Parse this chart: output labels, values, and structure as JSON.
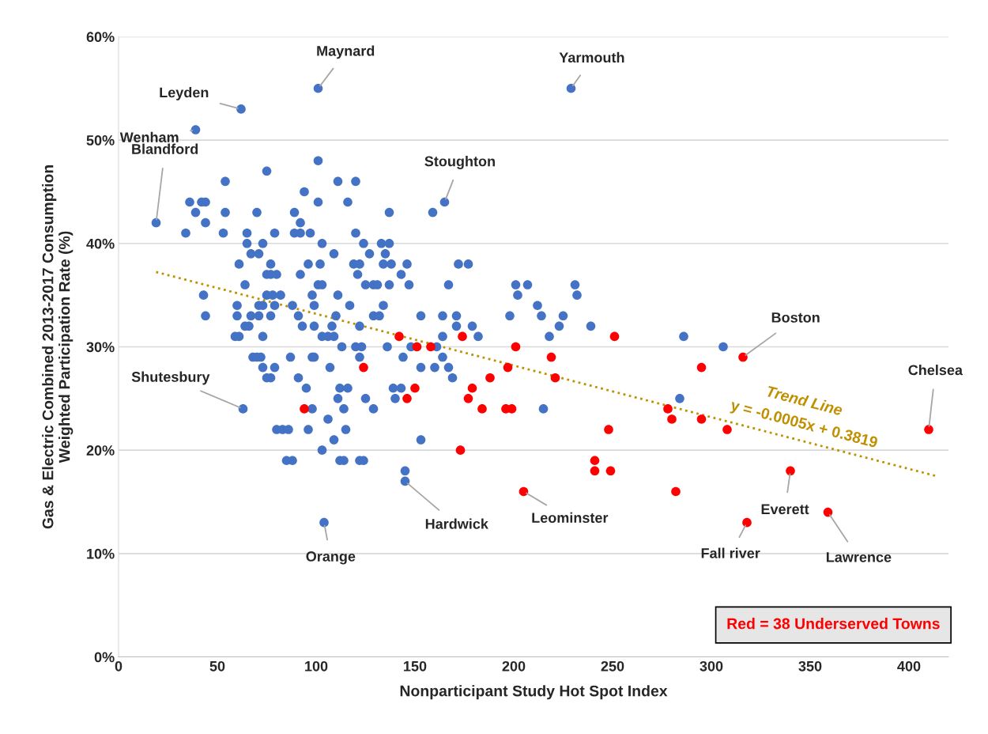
{
  "chart_data": {
    "type": "scatter",
    "xlabel": "Nonparticipant Study Hot Spot Index",
    "ylabel": "Gas & Electric Combined 2013-2017 Consumption\nWeighted Participation Rate (%)",
    "xlim": [
      0,
      420
    ],
    "xticks": [
      0,
      50,
      100,
      150,
      200,
      250,
      300,
      350,
      400
    ],
    "ylim": [
      0,
      60
    ],
    "yticks": [
      {
        "value": 0,
        "label": "0%"
      },
      {
        "value": 10,
        "label": "10%"
      },
      {
        "value": 20,
        "label": "20%"
      },
      {
        "value": 30,
        "label": "30%"
      },
      {
        "value": 40,
        "label": "40%"
      },
      {
        "value": 50,
        "label": "50%"
      },
      {
        "value": 60,
        "label": "60%"
      }
    ],
    "grid": "y",
    "marker": "circle",
    "series": [
      {
        "color": "#4472c4",
        "x": [
          101,
          229,
          62,
          39,
          19,
          101,
          75,
          54,
          111,
          120,
          94,
          36,
          42,
          44,
          101,
          116,
          165,
          39,
          54,
          70,
          89,
          137,
          159,
          44,
          92,
          34,
          53,
          65,
          79,
          89,
          92,
          97,
          120,
          65,
          73,
          103,
          124,
          133,
          137,
          67,
          71,
          109,
          127,
          135,
          61,
          77,
          96,
          102,
          119,
          122,
          134,
          138,
          146,
          172,
          177,
          75,
          77,
          80,
          92,
          121,
          143,
          64,
          101,
          103,
          125,
          129,
          131,
          137,
          147,
          167,
          201,
          207,
          231,
          43,
          75,
          78,
          82,
          98,
          111,
          202,
          232,
          60,
          71,
          73,
          79,
          88,
          99,
          117,
          134,
          212,
          44,
          60,
          67,
          71,
          77,
          91,
          110,
          129,
          132,
          153,
          164,
          171,
          198,
          214,
          225,
          64,
          66,
          93,
          99,
          108,
          122,
          171,
          179,
          223,
          239,
          59,
          61,
          73,
          103,
          106,
          109,
          164,
          182,
          218,
          286,
          113,
          120,
          123,
          136,
          148,
          161,
          306,
          68,
          70,
          72,
          87,
          98,
          99,
          122,
          144,
          164,
          73,
          79,
          107,
          153,
          160,
          167,
          75,
          77,
          91,
          169,
          95,
          112,
          116,
          139,
          143,
          111,
          125,
          140,
          284,
          63,
          98,
          114,
          129,
          215,
          106,
          80,
          83,
          86,
          96,
          115,
          109,
          153,
          103,
          85,
          88,
          112,
          114,
          122,
          124,
          145,
          145,
          104
        ],
        "values": [
          55,
          55,
          53,
          51,
          42,
          48,
          47,
          46,
          46,
          46,
          45,
          44,
          44,
          44,
          44,
          44,
          44,
          43,
          43,
          43,
          43,
          43,
          43,
          42,
          42,
          41,
          41,
          41,
          41,
          41,
          41,
          41,
          41,
          40,
          40,
          40,
          40,
          40,
          40,
          39,
          39,
          39,
          39,
          39,
          38,
          38,
          38,
          38,
          38,
          38,
          38,
          38,
          38,
          38,
          38,
          37,
          37,
          37,
          37,
          37,
          37,
          36,
          36,
          36,
          36,
          36,
          36,
          36,
          36,
          36,
          36,
          36,
          36,
          35,
          35,
          35,
          35,
          35,
          35,
          35,
          35,
          34,
          34,
          34,
          34,
          34,
          34,
          34,
          34,
          34,
          33,
          33,
          33,
          33,
          33,
          33,
          33,
          33,
          33,
          33,
          33,
          33,
          33,
          33,
          33,
          32,
          32,
          32,
          32,
          32,
          32,
          32,
          32,
          32,
          32,
          31,
          31,
          31,
          31,
          31,
          31,
          31,
          31,
          31,
          31,
          30,
          30,
          30,
          30,
          30,
          30,
          30,
          29,
          29,
          29,
          29,
          29,
          29,
          29,
          29,
          29,
          28,
          28,
          28,
          28,
          28,
          28,
          27,
          27,
          27,
          27,
          26,
          26,
          26,
          26,
          26,
          25,
          25,
          25,
          25,
          24,
          24,
          24,
          24,
          24,
          23,
          22,
          22,
          22,
          22,
          22,
          21,
          21,
          20,
          19,
          19,
          19,
          19,
          19,
          19,
          18,
          17,
          13
        ]
      },
      {
        "color": "#ff0000",
        "x": [
          94,
          124,
          142,
          151,
          158,
          174,
          201,
          219,
          197,
          221,
          188,
          150,
          179,
          146,
          177,
          184,
          196,
          199,
          248,
          173,
          241,
          241,
          249,
          205,
          251,
          316,
          295,
          278,
          280,
          295,
          308,
          282,
          340,
          318,
          359,
          410
        ],
        "values": [
          24,
          28,
          31,
          30,
          30,
          31,
          30,
          29,
          28,
          27,
          27,
          26,
          26,
          25,
          25,
          24,
          24,
          24,
          22,
          20,
          19,
          18,
          18,
          16,
          31,
          29,
          28,
          24,
          23,
          23,
          22,
          16,
          18,
          13,
          14,
          22
        ]
      },
      {
        "type": "line",
        "name": "Trend Line",
        "color": "#bf9000",
        "line_style": "dotted",
        "marker": "none",
        "x": [
          19,
          414
        ],
        "values": [
          37.24,
          17.49
        ]
      }
    ],
    "annotations": [
      {
        "text": "Maynard",
        "x": 101,
        "y": 55
      },
      {
        "text": "Yarmouth",
        "x": 229,
        "y": 55
      },
      {
        "text": "Leyden",
        "x": 62,
        "y": 53
      },
      {
        "text": "Wenham",
        "x": 39,
        "y": 51
      },
      {
        "text": "Blandford",
        "x": 19,
        "y": 42
      },
      {
        "text": "Stoughton",
        "x": 165,
        "y": 44
      },
      {
        "text": "Shutesbury",
        "x": 63,
        "y": 24
      },
      {
        "text": "Orange",
        "x": 104,
        "y": 13
      },
      {
        "text": "Hardwick",
        "x": 145,
        "y": 17
      },
      {
        "text": "Leominster",
        "x": 205,
        "y": 16
      },
      {
        "text": "Boston",
        "x": 316,
        "y": 29
      },
      {
        "text": "Everett",
        "x": 340,
        "y": 18
      },
      {
        "text": "Fall river",
        "x": 318,
        "y": 13
      },
      {
        "text": "Lawrence",
        "x": 359,
        "y": 14
      },
      {
        "text": "Chelsea",
        "x": 410,
        "y": 22
      },
      "y = -0.0005x + 0.3819",
      "Red = 38 Underserved Towns"
    ]
  }
}
